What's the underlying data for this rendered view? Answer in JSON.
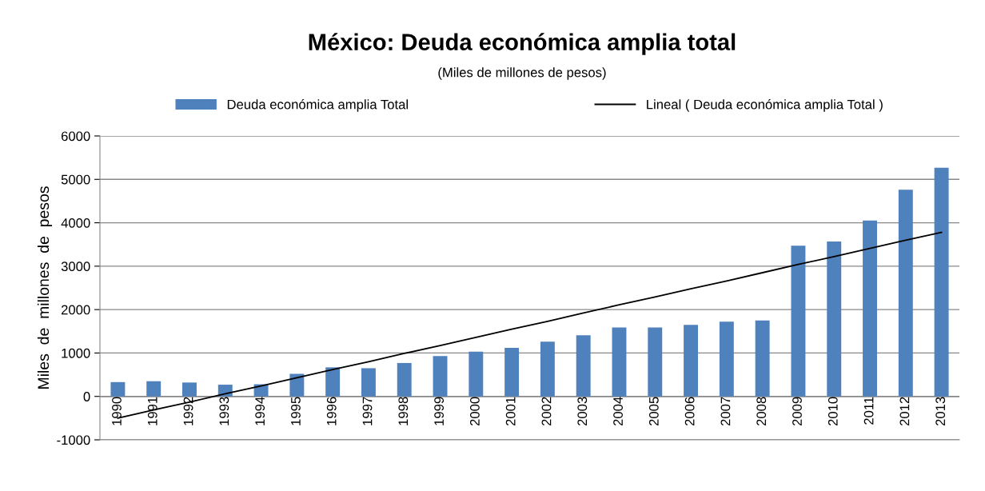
{
  "chart_data": {
    "type": "bar",
    "title": "México: Deuda económica amplia total",
    "subtitle": "(Miles de millones de pesos)",
    "ylabel": "Miles  de  millones  de  pesos",
    "categories": [
      "1990",
      "1991",
      "1992",
      "1993",
      "1994",
      "1995",
      "1996",
      "1997",
      "1998",
      "1999",
      "2000",
      "2001",
      "2002",
      "2003",
      "2004",
      "2005",
      "2006",
      "2007",
      "2008",
      "2009",
      "2010",
      "2011",
      "2012",
      "2013"
    ],
    "series": [
      {
        "name": "Deuda económica amplia Total",
        "color": "#4f81bd",
        "values": [
          330,
          350,
          320,
          270,
          280,
          520,
          670,
          650,
          770,
          930,
          1030,
          1120,
          1260,
          1410,
          1590,
          1590,
          1650,
          1720,
          1750,
          3470,
          3570,
          4050,
          4760,
          5270
        ]
      },
      {
        "name": "Lineal ( Deuda económica amplia Total )",
        "type": "line",
        "color": "#000000",
        "values": [
          -500,
          -310,
          -130,
          60,
          240,
          430,
          620,
          800,
          990,
          1170,
          1360,
          1550,
          1730,
          1920,
          2110,
          2290,
          2480,
          2660,
          2850,
          3040,
          3220,
          3410,
          3600,
          3780
        ]
      }
    ],
    "ylim": [
      -1000,
      6000
    ],
    "yticks": [
      -1000,
      0,
      1000,
      2000,
      3000,
      4000,
      5000,
      6000
    ],
    "grid": "y",
    "legend": "top"
  }
}
